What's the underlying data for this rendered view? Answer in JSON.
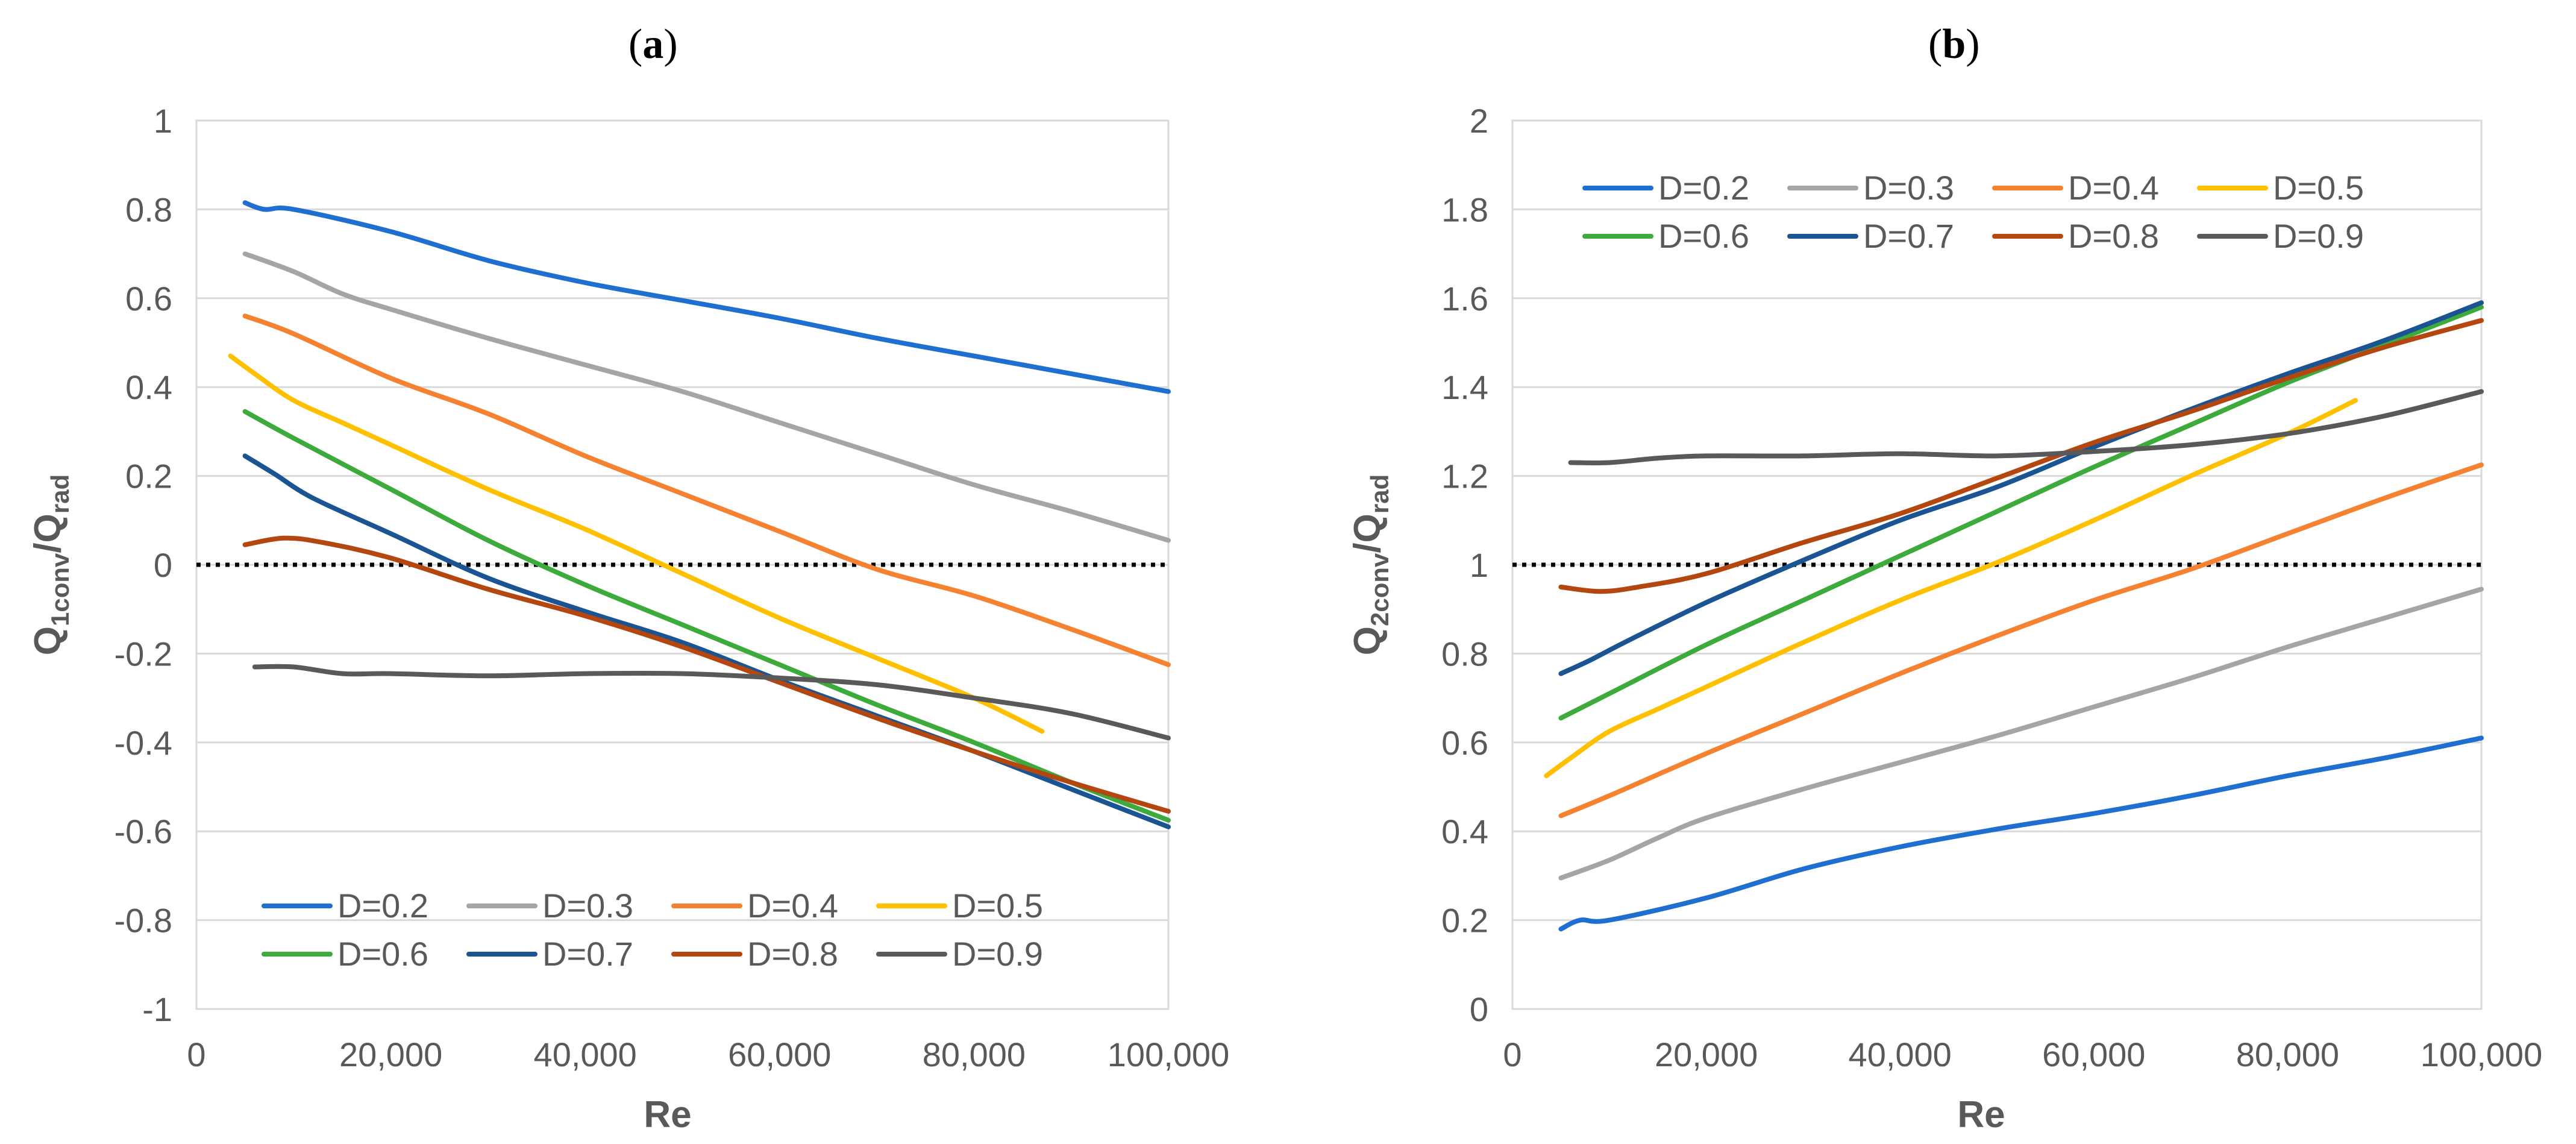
{
  "chart_data": [
    {
      "type": "line",
      "panel_label": "a",
      "xlabel": "Re",
      "ylabel_main": "Q",
      "ylabel_sub1": "1conv",
      "ylabel_sep": "/Q",
      "ylabel_sub2": "rad",
      "xlim": [
        0,
        100000
      ],
      "ylim": [
        -1,
        1
      ],
      "xticks": [
        0,
        20000,
        40000,
        60000,
        80000,
        100000
      ],
      "xtick_labels": [
        "0",
        "20,000",
        "40,000",
        "60,000",
        "80,000",
        "100,000"
      ],
      "yticks": [
        -1,
        -0.8,
        -0.6,
        -0.4,
        -0.2,
        0,
        0.2,
        0.4,
        0.6,
        0.8,
        1
      ],
      "ytick_labels": [
        "-1",
        "-0.8",
        "-0.6",
        "-0.4",
        "-0.2",
        "0",
        "0.2",
        "0.4",
        "0.6",
        "0.8",
        "1"
      ],
      "reference_line": 0,
      "grid": "horizontal",
      "legend_position": "bottom",
      "series": [
        {
          "name": "D=0.2",
          "color": "#1f6fd0",
          "x": [
            5000,
            7000,
            10000,
            20000,
            30000,
            40000,
            50000,
            60000,
            70000,
            80000,
            90000,
            100000
          ],
          "y": [
            0.815,
            0.8,
            0.8,
            0.75,
            0.685,
            0.635,
            0.595,
            0.555,
            0.51,
            0.47,
            0.43,
            0.39
          ]
        },
        {
          "name": "D=0.3",
          "color": "#a5a5a5",
          "x": [
            5000,
            10000,
            15000,
            20000,
            30000,
            40000,
            50000,
            60000,
            70000,
            80000,
            90000,
            100000
          ],
          "y": [
            0.7,
            0.66,
            0.61,
            0.575,
            0.51,
            0.45,
            0.39,
            0.32,
            0.25,
            0.18,
            0.12,
            0.055
          ]
        },
        {
          "name": "D=0.4",
          "color": "#f58231",
          "x": [
            5000,
            10000,
            20000,
            30000,
            40000,
            50000,
            60000,
            70000,
            80000,
            90000,
            100000
          ],
          "y": [
            0.56,
            0.52,
            0.42,
            0.34,
            0.245,
            0.16,
            0.075,
            -0.01,
            -0.07,
            -0.145,
            -0.225
          ]
        },
        {
          "name": "D=0.5",
          "color": "#ffc000",
          "x": [
            3500,
            6000,
            10000,
            15000,
            20000,
            30000,
            40000,
            50000,
            60000,
            70000,
            80000,
            87000
          ],
          "y": [
            0.47,
            0.43,
            0.37,
            0.32,
            0.27,
            0.17,
            0.08,
            -0.02,
            -0.12,
            -0.21,
            -0.3,
            -0.375
          ]
        },
        {
          "name": "D=0.6",
          "color": "#3cab3c",
          "x": [
            5000,
            10000,
            20000,
            30000,
            40000,
            50000,
            60000,
            70000,
            80000,
            90000,
            100000
          ],
          "y": [
            0.345,
            0.285,
            0.17,
            0.055,
            -0.045,
            -0.135,
            -0.225,
            -0.315,
            -0.4,
            -0.49,
            -0.575
          ]
        },
        {
          "name": "D=0.7",
          "color": "#1a5493",
          "x": [
            5000,
            8000,
            12000,
            20000,
            30000,
            40000,
            50000,
            60000,
            70000,
            80000,
            90000,
            100000
          ],
          "y": [
            0.245,
            0.205,
            0.15,
            0.07,
            -0.03,
            -0.105,
            -0.175,
            -0.26,
            -0.34,
            -0.42,
            -0.505,
            -0.59
          ]
        },
        {
          "name": "D=0.8",
          "color": "#b4470f",
          "x": [
            5000,
            9000,
            13000,
            20000,
            30000,
            40000,
            50000,
            60000,
            70000,
            80000,
            90000,
            100000
          ],
          "y": [
            0.045,
            0.06,
            0.05,
            0.015,
            -0.055,
            -0.115,
            -0.185,
            -0.265,
            -0.345,
            -0.42,
            -0.49,
            -0.555
          ]
        },
        {
          "name": "D=0.9",
          "color": "#595959",
          "x": [
            6000,
            10000,
            15000,
            20000,
            30000,
            40000,
            50000,
            60000,
            70000,
            80000,
            90000,
            100000
          ],
          "y": [
            -0.23,
            -0.23,
            -0.245,
            -0.245,
            -0.25,
            -0.245,
            -0.245,
            -0.255,
            -0.27,
            -0.3,
            -0.335,
            -0.39
          ]
        }
      ]
    },
    {
      "type": "line",
      "panel_label": "b",
      "xlabel": "Re",
      "ylabel_main": "Q",
      "ylabel_sub1": "2conv",
      "ylabel_sep": "/Q",
      "ylabel_sub2": "rad",
      "xlim": [
        0,
        100000
      ],
      "ylim": [
        0,
        2
      ],
      "xticks": [
        0,
        20000,
        40000,
        60000,
        80000,
        100000
      ],
      "xtick_labels": [
        "0",
        "20,000",
        "40,000",
        "60,000",
        "80,000",
        "100,000"
      ],
      "yticks": [
        0,
        0.2,
        0.4,
        0.6,
        0.8,
        1,
        1.2,
        1.4,
        1.6,
        1.8,
        2
      ],
      "ytick_labels": [
        "0",
        "0.2",
        "0.4",
        "0.6",
        "0.8",
        "1",
        "1.2",
        "1.4",
        "1.6",
        "1.8",
        "2"
      ],
      "reference_line": 1,
      "grid": "horizontal",
      "legend_position": "top",
      "series": [
        {
          "name": "D=0.2",
          "color": "#1f6fd0",
          "x": [
            5000,
            7000,
            10000,
            20000,
            30000,
            40000,
            50000,
            60000,
            70000,
            80000,
            90000,
            100000
          ],
          "y": [
            0.18,
            0.2,
            0.2,
            0.25,
            0.315,
            0.365,
            0.405,
            0.44,
            0.48,
            0.525,
            0.565,
            0.61
          ]
        },
        {
          "name": "D=0.3",
          "color": "#a5a5a5",
          "x": [
            5000,
            10000,
            15000,
            20000,
            30000,
            40000,
            50000,
            60000,
            70000,
            80000,
            90000,
            100000
          ],
          "y": [
            0.295,
            0.335,
            0.385,
            0.43,
            0.495,
            0.555,
            0.615,
            0.68,
            0.745,
            0.815,
            0.88,
            0.945
          ]
        },
        {
          "name": "D=0.4",
          "color": "#f58231",
          "x": [
            5000,
            10000,
            20000,
            30000,
            40000,
            50000,
            60000,
            70000,
            80000,
            90000,
            100000
          ],
          "y": [
            0.435,
            0.48,
            0.575,
            0.665,
            0.755,
            0.84,
            0.92,
            0.99,
            1.07,
            1.15,
            1.225
          ]
        },
        {
          "name": "D=0.5",
          "color": "#ffc000",
          "x": [
            3500,
            6000,
            10000,
            15000,
            20000,
            30000,
            40000,
            50000,
            60000,
            70000,
            80000,
            87000
          ],
          "y": [
            0.525,
            0.565,
            0.625,
            0.675,
            0.725,
            0.825,
            0.92,
            1.005,
            1.1,
            1.2,
            1.295,
            1.37
          ]
        },
        {
          "name": "D=0.6",
          "color": "#3cab3c",
          "x": [
            5000,
            10000,
            20000,
            30000,
            40000,
            50000,
            60000,
            70000,
            80000,
            90000,
            100000
          ],
          "y": [
            0.655,
            0.71,
            0.82,
            0.92,
            1.02,
            1.12,
            1.22,
            1.315,
            1.41,
            1.495,
            1.58
          ]
        },
        {
          "name": "D=0.7",
          "color": "#1a5493",
          "x": [
            5000,
            8000,
            12000,
            20000,
            30000,
            40000,
            50000,
            60000,
            70000,
            80000,
            90000,
            100000
          ],
          "y": [
            0.755,
            0.785,
            0.83,
            0.915,
            1.01,
            1.1,
            1.175,
            1.265,
            1.35,
            1.43,
            1.505,
            1.59
          ]
        },
        {
          "name": "D=0.8",
          "color": "#b4470f",
          "x": [
            5000,
            9000,
            13000,
            20000,
            30000,
            40000,
            50000,
            60000,
            70000,
            80000,
            90000,
            100000
          ],
          "y": [
            0.95,
            0.94,
            0.95,
            0.98,
            1.05,
            1.115,
            1.195,
            1.275,
            1.345,
            1.42,
            1.49,
            1.55
          ]
        },
        {
          "name": "D=0.9",
          "color": "#595959",
          "x": [
            6000,
            10000,
            15000,
            20000,
            30000,
            40000,
            50000,
            60000,
            70000,
            80000,
            90000,
            100000
          ],
          "y": [
            1.23,
            1.23,
            1.24,
            1.245,
            1.245,
            1.25,
            1.245,
            1.255,
            1.27,
            1.295,
            1.335,
            1.39
          ]
        }
      ]
    }
  ]
}
